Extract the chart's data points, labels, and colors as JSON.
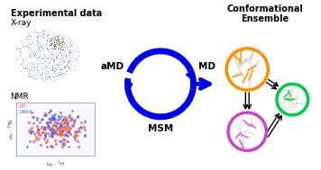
{
  "title": "",
  "bg_color": "#ffffff",
  "left_title": "Experimental data",
  "right_title": "Conformational\nEnsemble",
  "xray_label": "X-ray",
  "nmr_label": "NMR",
  "amd_label": "aMD",
  "md_label": "MD",
  "msm_label": "MSM",
  "arrow_color": "#1a1aff",
  "circle_arrow_color": "#0000ee",
  "orange_color": "#FF8C00",
  "green_color": "#00CC44",
  "purple_color": "#CC44CC",
  "nmr_wt_color": "#FF6644",
  "nmr_d66a_color": "#4466FF",
  "text_color": "#000000"
}
